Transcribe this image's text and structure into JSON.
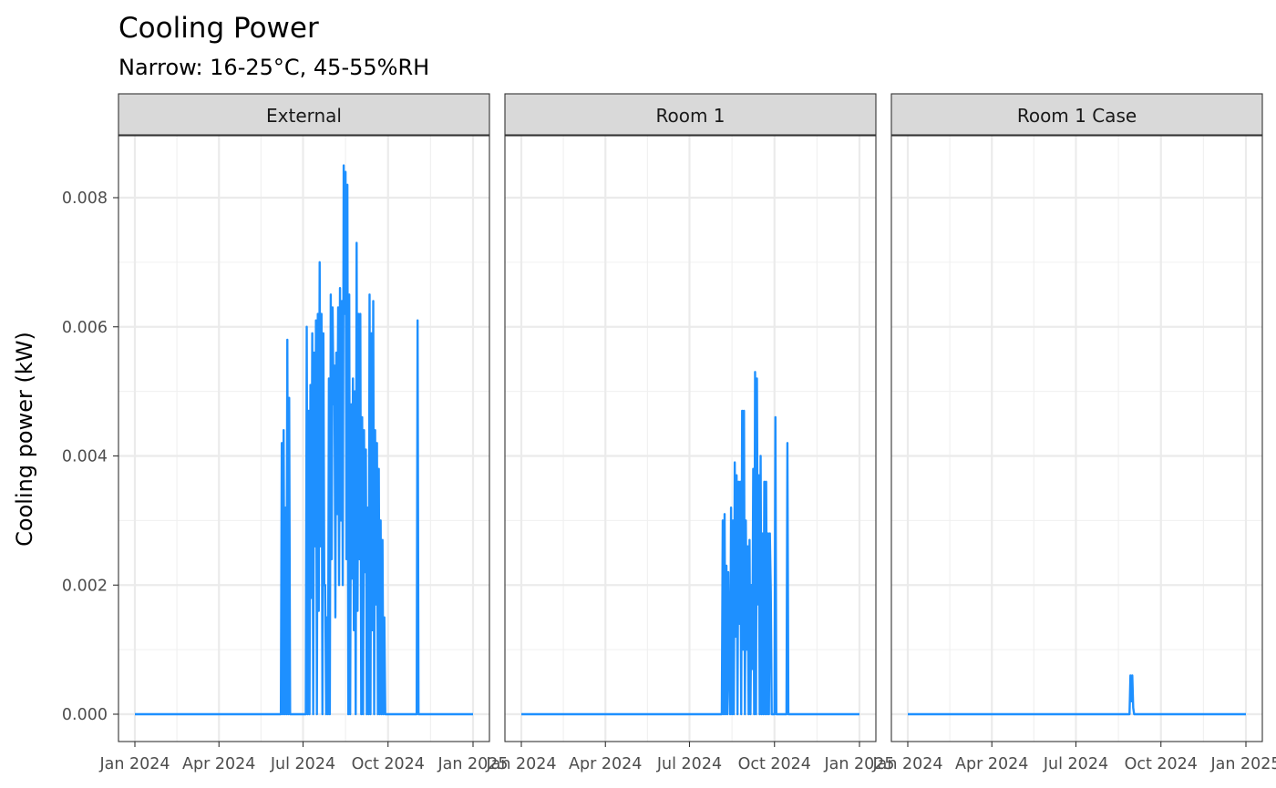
{
  "chart_data": {
    "type": "line",
    "title": "Cooling Power",
    "subtitle": "Narrow: 16-25°C, 45-55%RH",
    "ylabel": "Cooling power (kW)",
    "xlabel": "",
    "x_axis": "date",
    "xlim": [
      "2024-01-01",
      "2025-01-01"
    ],
    "ylim": [
      0,
      0.0085
    ],
    "x_ticks": [
      "2024-01-01",
      "2024-04-01",
      "2024-07-01",
      "2024-10-01",
      "2025-01-01"
    ],
    "x_tick_labels": [
      "Jan 2024",
      "Apr 2024",
      "Jul 2024",
      "Oct 2024",
      "Jan 2025"
    ],
    "y_ticks": [
      0,
      0.002,
      0.004,
      0.006,
      0.008
    ],
    "y_tick_labels": [
      "0.000",
      "0.002",
      "0.004",
      "0.006",
      "0.008"
    ],
    "grid": true,
    "line_color": "#1E90FF",
    "panels": [
      {
        "strip": "External",
        "x": [
          "2024-01-01",
          "2024-06-07",
          "2024-06-08",
          "2024-06-09",
          "2024-06-10",
          "2024-06-11",
          "2024-06-12",
          "2024-06-13",
          "2024-06-14",
          "2024-06-15",
          "2024-06-16",
          "2024-06-17",
          "2024-07-04",
          "2024-07-05",
          "2024-07-06",
          "2024-07-07",
          "2024-07-08",
          "2024-07-09",
          "2024-07-10",
          "2024-07-11",
          "2024-07-12",
          "2024-07-13",
          "2024-07-14",
          "2024-07-15",
          "2024-07-16",
          "2024-07-17",
          "2024-07-18",
          "2024-07-19",
          "2024-07-20",
          "2024-07-21",
          "2024-07-22",
          "2024-07-23",
          "2024-07-24",
          "2024-07-25",
          "2024-07-26",
          "2024-07-27",
          "2024-07-28",
          "2024-07-29",
          "2024-07-30",
          "2024-07-31",
          "2024-08-01",
          "2024-08-02",
          "2024-08-03",
          "2024-08-04",
          "2024-08-05",
          "2024-08-06",
          "2024-08-07",
          "2024-08-08",
          "2024-08-09",
          "2024-08-10",
          "2024-08-11",
          "2024-08-12",
          "2024-08-13",
          "2024-08-14",
          "2024-08-15",
          "2024-08-16",
          "2024-08-17",
          "2024-08-18",
          "2024-08-19",
          "2024-08-20",
          "2024-08-21",
          "2024-08-22",
          "2024-08-23",
          "2024-08-24",
          "2024-08-25",
          "2024-08-26",
          "2024-08-27",
          "2024-08-28",
          "2024-08-29",
          "2024-08-30",
          "2024-08-31",
          "2024-09-01",
          "2024-09-02",
          "2024-09-03",
          "2024-09-04",
          "2024-09-05",
          "2024-09-06",
          "2024-09-07",
          "2024-09-08",
          "2024-09-09",
          "2024-09-10",
          "2024-09-11",
          "2024-09-12",
          "2024-09-13",
          "2024-09-14",
          "2024-09-15",
          "2024-09-16",
          "2024-09-17",
          "2024-09-18",
          "2024-09-19",
          "2024-09-20",
          "2024-09-21",
          "2024-09-22",
          "2024-09-23",
          "2024-09-24",
          "2024-09-25",
          "2024-09-26",
          "2024-09-27",
          "2024-09-28",
          "2024-11-01",
          "2024-11-02",
          "2024-11-03",
          "2025-01-01"
        ],
        "y": [
          0,
          0,
          0.0042,
          0,
          0.0044,
          0,
          0.0032,
          0,
          0.0058,
          0,
          0.0049,
          0,
          0,
          0.006,
          0,
          0.0047,
          0,
          0.0051,
          0.0018,
          0.0059,
          0,
          0.0056,
          0.0026,
          0.0061,
          0,
          0.0062,
          0.0016,
          0.007,
          0.0026,
          0.0062,
          0,
          0.0059,
          0.002,
          0.002,
          0,
          0.0015,
          0,
          0.0052,
          0,
          0.0065,
          0.0024,
          0.0063,
          0.0048,
          0.0054,
          0.0015,
          0.0056,
          0.0031,
          0.0063,
          0.002,
          0.0066,
          0.003,
          0.0064,
          0.002,
          0.0085,
          0.0062,
          0.0084,
          0.0024,
          0.0082,
          0,
          0.0065,
          0,
          0.0048,
          0.0021,
          0.0052,
          0.0013,
          0.005,
          0,
          0.0073,
          0.0016,
          0.0062,
          0.0024,
          0.0062,
          0,
          0.0046,
          0,
          0.0044,
          0.0022,
          0.0041,
          0,
          0.0032,
          0,
          0.0065,
          0,
          0.0059,
          0.0013,
          0.0064,
          0,
          0.0044,
          0.0017,
          0.0042,
          0,
          0.0038,
          0,
          0.003,
          0,
          0.0027,
          0,
          0.0015,
          0,
          0,
          0.0061,
          0,
          0
        ]
      },
      {
        "strip": "Room 1",
        "x": [
          "2024-01-01",
          "2024-08-05",
          "2024-08-06",
          "2024-08-07",
          "2024-08-08",
          "2024-08-09",
          "2024-08-10",
          "2024-08-11",
          "2024-08-12",
          "2024-08-13",
          "2024-08-14",
          "2024-08-15",
          "2024-08-16",
          "2024-08-17",
          "2024-08-18",
          "2024-08-19",
          "2024-08-20",
          "2024-08-21",
          "2024-08-22",
          "2024-08-23",
          "2024-08-24",
          "2024-08-25",
          "2024-08-26",
          "2024-08-27",
          "2024-08-28",
          "2024-08-29",
          "2024-08-30",
          "2024-08-31",
          "2024-09-01",
          "2024-09-02",
          "2024-09-03",
          "2024-09-04",
          "2024-09-05",
          "2024-09-06",
          "2024-09-07",
          "2024-09-08",
          "2024-09-09",
          "2024-09-10",
          "2024-09-11",
          "2024-09-12",
          "2024-09-13",
          "2024-09-14",
          "2024-09-15",
          "2024-09-16",
          "2024-09-17",
          "2024-09-18",
          "2024-09-19",
          "2024-09-20",
          "2024-09-21",
          "2024-09-22",
          "2024-09-23",
          "2024-09-24",
          "2024-09-25",
          "2024-09-26",
          "2024-09-27",
          "2024-09-28",
          "2024-10-01",
          "2024-10-02",
          "2024-10-03",
          "2024-10-14",
          "2024-10-15",
          "2024-10-16",
          "2025-01-01"
        ],
        "y": [
          0,
          0,
          0.003,
          0,
          0.0031,
          0,
          0.0023,
          0,
          0.0022,
          0.0008,
          0,
          0.0032,
          0,
          0.003,
          0,
          0.0039,
          0.0012,
          0.0037,
          0,
          0.0036,
          0.0014,
          0.0036,
          0,
          0.0047,
          0.001,
          0.0047,
          0,
          0.003,
          0.001,
          0.0026,
          0,
          0.0027,
          0,
          0.002,
          0.0007,
          0.0038,
          0,
          0.0053,
          0,
          0.0052,
          0.0017,
          0.0037,
          0,
          0.004,
          0,
          0.0028,
          0,
          0.0036,
          0,
          0.0036,
          0,
          0.0028,
          0,
          0.0028,
          0.0019,
          0,
          0,
          0.0046,
          0,
          0,
          0.0042,
          0,
          0
        ]
      },
      {
        "strip": "Room 1 Case",
        "x": [
          "2024-01-01",
          "2024-08-28",
          "2024-08-29",
          "2024-08-30",
          "2024-08-31",
          "2024-09-01",
          "2024-09-02",
          "2025-01-01"
        ],
        "y": [
          0,
          0,
          0.0006,
          0.0002,
          0.0006,
          0.0001,
          0,
          0
        ]
      }
    ]
  }
}
